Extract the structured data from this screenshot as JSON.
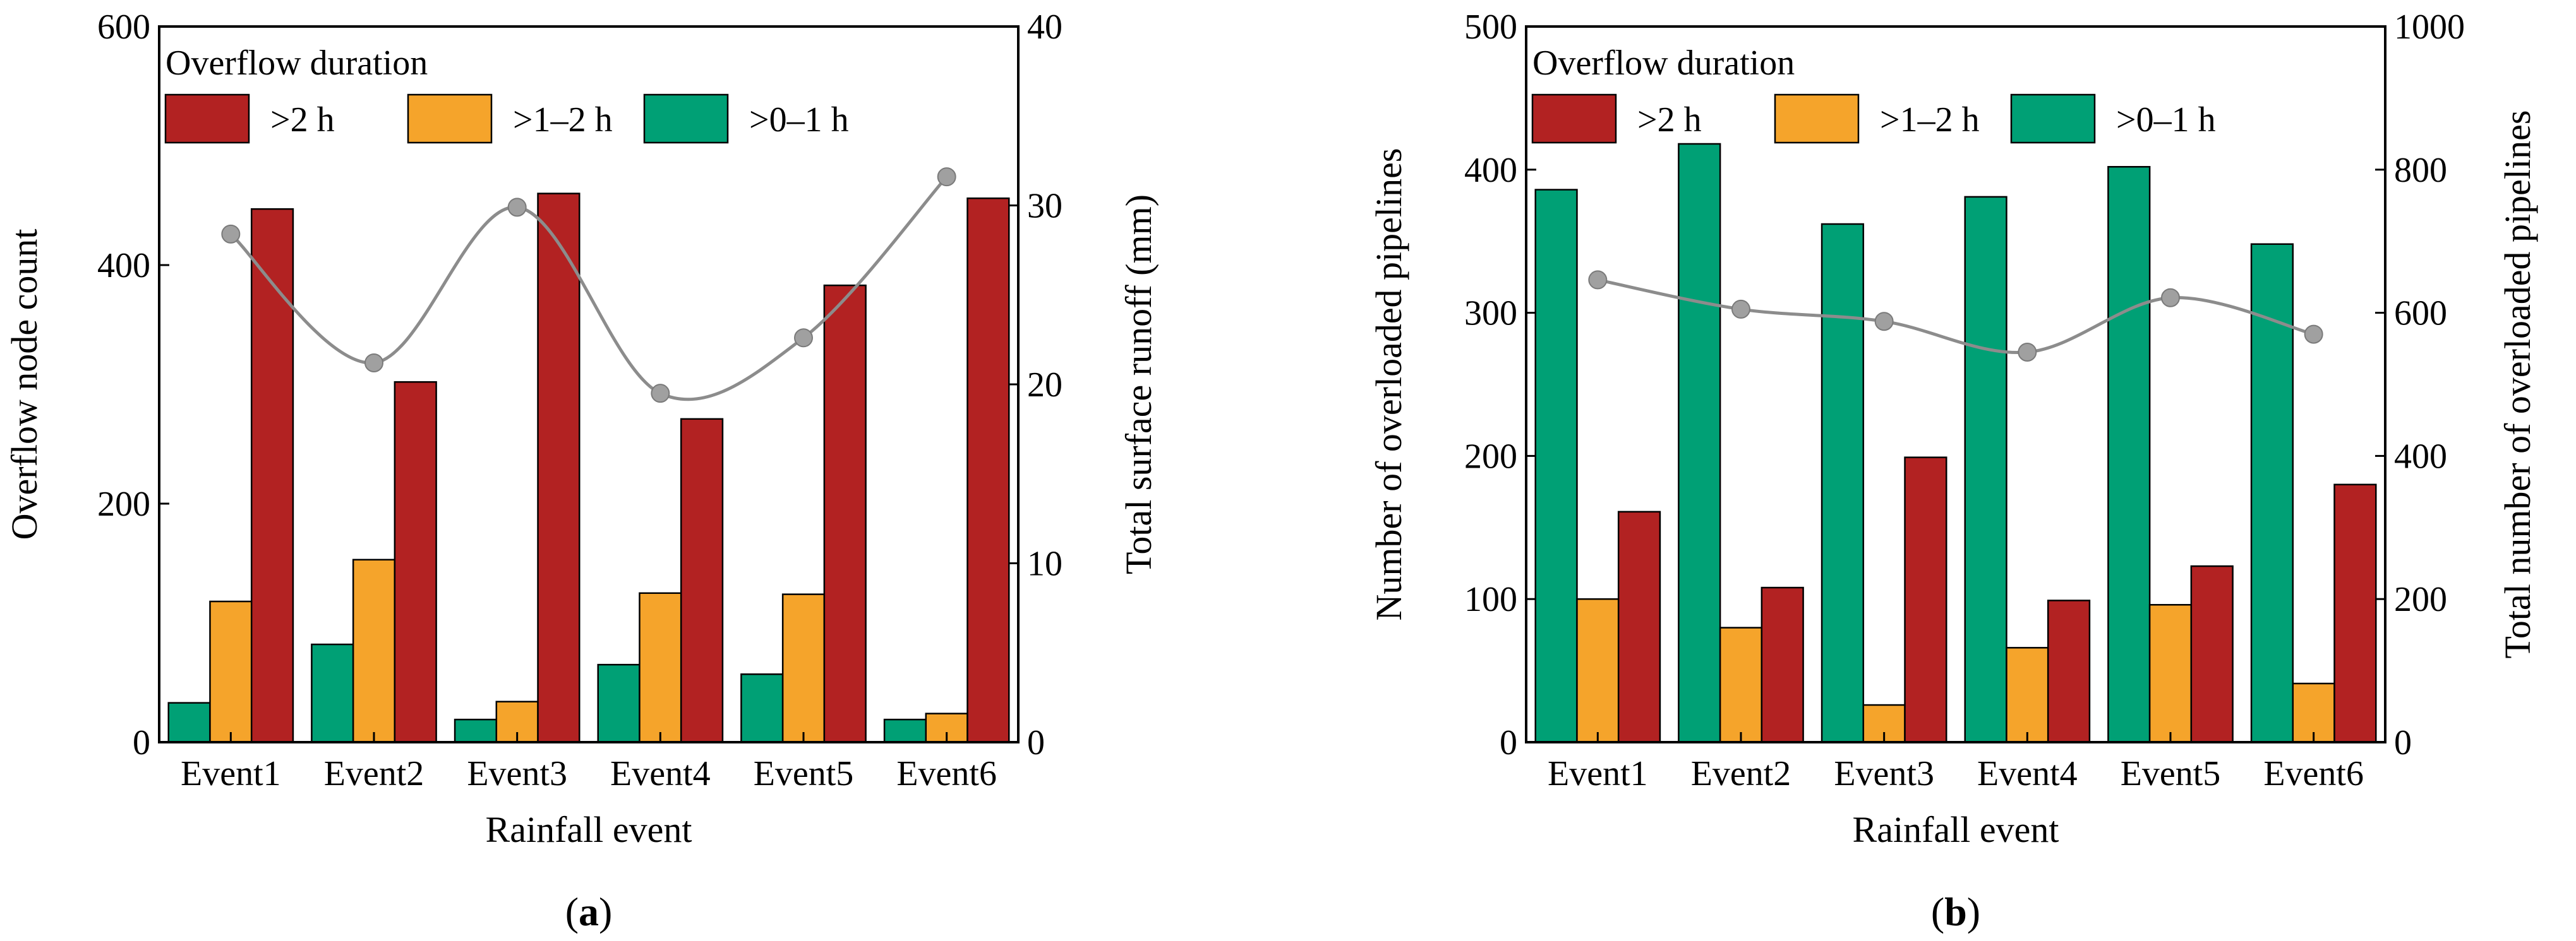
{
  "colors": {
    "gt2": "#B22222",
    "gt1_2": "#F5A42B",
    "gt0_1": "#00A075",
    "line": "#8C8C8C",
    "marker": "#A0A0A0",
    "axis": "#000000"
  },
  "chart_data": [
    {
      "type": "bar",
      "panel_label": "(a)",
      "panel_letter": "a",
      "title": "",
      "xlabel": "Rainfall event",
      "ylabel": "Overflow node count",
      "y2label": "Total surface runoff (mm)",
      "categories": [
        "Event1",
        "Event2",
        "Event3",
        "Event4",
        "Event5",
        "Event6"
      ],
      "ylim": [
        0,
        600
      ],
      "yticks": [
        0,
        200,
        400,
        600
      ],
      "y2lim": [
        0,
        40
      ],
      "y2ticks": [
        0,
        10,
        20,
        30,
        40
      ],
      "legend": {
        "title": "Overflow duration",
        "placement": "top-left"
      },
      "series": [
        {
          "name": ">0–1 h",
          "color_key": "gt0_1",
          "values": [
            33,
            82,
            19,
            65,
            57,
            19
          ]
        },
        {
          "name": ">1–2 h",
          "color_key": "gt1_2",
          "values": [
            118,
            153,
            34,
            125,
            124,
            24
          ]
        },
        {
          "name": ">2 h",
          "color_key": "gt2",
          "values": [
            447,
            302,
            460,
            271,
            383,
            456
          ]
        }
      ],
      "legend_order": [
        ">2 h",
        ">1–2 h",
        ">0–1 h"
      ],
      "line_series": {
        "name": "Total surface runoff",
        "axis": "right",
        "values": [
          28.4,
          21.2,
          29.9,
          19.5,
          22.6,
          31.6
        ]
      }
    },
    {
      "type": "bar",
      "panel_label": "(b)",
      "panel_letter": "b",
      "title": "",
      "xlabel": "Rainfall event",
      "ylabel": "Number of overloaded pipelines",
      "y2label": "Total number of overloaded pipelines",
      "categories": [
        "Event1",
        "Event2",
        "Event3",
        "Event4",
        "Event5",
        "Event6"
      ],
      "ylim": [
        0,
        500
      ],
      "yticks": [
        0,
        100,
        200,
        300,
        400,
        500
      ],
      "y2lim": [
        0,
        1000
      ],
      "y2ticks": [
        0,
        200,
        400,
        600,
        800,
        1000
      ],
      "legend": {
        "title": "Overflow duration",
        "placement": "top-left"
      },
      "series": [
        {
          "name": ">0–1 h",
          "color_key": "gt0_1",
          "values": [
            386,
            418,
            362,
            381,
            402,
            348
          ]
        },
        {
          "name": ">1–2 h",
          "color_key": "gt1_2",
          "values": [
            100,
            80,
            26,
            66,
            96,
            41
          ]
        },
        {
          "name": ">2 h",
          "color_key": "gt2",
          "values": [
            161,
            108,
            199,
            99,
            123,
            180
          ]
        }
      ],
      "legend_order": [
        ">2 h",
        ">1–2 h",
        ">0–1 h"
      ],
      "line_series": {
        "name": "Total number of overloaded pipelines",
        "axis": "right",
        "values": [
          646,
          605,
          588,
          545,
          621,
          570
        ]
      }
    }
  ]
}
